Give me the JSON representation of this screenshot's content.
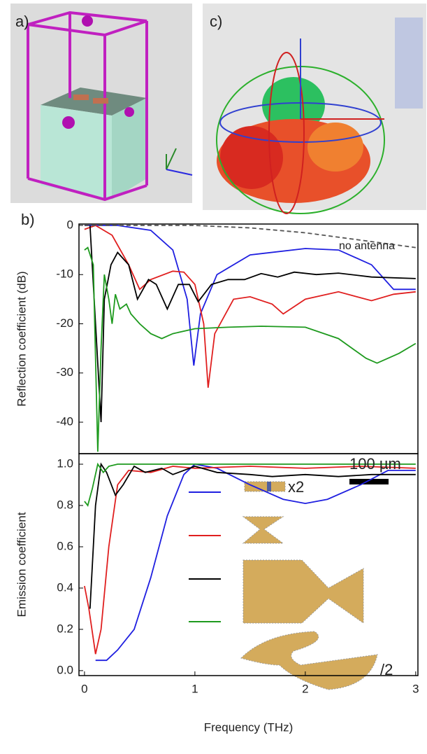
{
  "labels": {
    "a": "a)",
    "b": "b)",
    "c": "c)"
  },
  "chart_data": [
    {
      "type": "line",
      "y_label": "Reflection coefficient (dB)",
      "xlim": [
        -0.05,
        3.02
      ],
      "ylim": [
        -46.4,
        0.28
      ],
      "yticks": [
        0,
        -10,
        -20,
        -30,
        -40
      ],
      "annotations": [
        "no antenna"
      ],
      "series": [
        {
          "color": "#1f1fe0",
          "x": [
            0,
            0.3,
            0.6,
            0.8,
            0.93,
            0.99,
            1.05,
            1.2,
            1.5,
            2.0,
            2.3,
            2.6,
            2.8,
            3.0
          ],
          "values": [
            0,
            0,
            -1,
            -5,
            -15,
            -28.5,
            -18,
            -10,
            -6,
            -4.7,
            -5,
            -8,
            -13,
            -13
          ]
        },
        {
          "color": "#e01f1f",
          "x": [
            0,
            0.1,
            0.25,
            0.4,
            0.5,
            0.6,
            0.8,
            0.9,
            1.0,
            1.08,
            1.12,
            1.18,
            1.35,
            1.5,
            1.7,
            1.8,
            2.0,
            2.3,
            2.6,
            2.8,
            3.0
          ],
          "values": [
            -0.8,
            0,
            -2,
            -8,
            -13,
            -11,
            -9.3,
            -9.5,
            -12,
            -20,
            -33,
            -22,
            -15,
            -14.5,
            -16,
            -18,
            -15,
            -13.5,
            -15.3,
            -14,
            -13.5
          ]
        },
        {
          "color": "#000000",
          "x": [
            0.05,
            0.1,
            0.15,
            0.18,
            0.24,
            0.3,
            0.4,
            0.48,
            0.58,
            0.65,
            0.75,
            0.85,
            0.95,
            1.03,
            1.15,
            1.3,
            1.45,
            1.6,
            1.75,
            1.9,
            2.1,
            2.3,
            2.6,
            3.0
          ],
          "values": [
            0,
            -20,
            -40,
            -15,
            -8,
            -5.5,
            -8,
            -15,
            -11,
            -12,
            -17,
            -12,
            -12,
            -15.5,
            -12,
            -11,
            -11,
            -9.8,
            -10.5,
            -9.5,
            -10,
            -9.7,
            -10.5,
            -10.8
          ]
        },
        {
          "color": "#1e9a1e",
          "x": [
            0,
            0.03,
            0.08,
            0.12,
            0.15,
            0.18,
            0.22,
            0.25,
            0.28,
            0.32,
            0.38,
            0.42,
            0.5,
            0.6,
            0.7,
            0.8,
            1.0,
            1.3,
            1.6,
            2.0,
            2.3,
            2.55,
            2.65,
            2.85,
            3.0
          ],
          "values": [
            -5,
            -4.5,
            -8,
            -46,
            -25,
            -10,
            -15,
            -20,
            -14,
            -17,
            -16,
            -18,
            -20,
            -22,
            -23,
            -22,
            -21,
            -20.7,
            -20.5,
            -20.7,
            -23,
            -27,
            -28,
            -26,
            -24
          ]
        },
        {
          "color": "#555555",
          "dash": true,
          "x": [
            0,
            1.0,
            1.5,
            2.0,
            2.5,
            3.0
          ],
          "values": [
            0,
            0,
            -0.5,
            -1.5,
            -3,
            -4.5
          ]
        }
      ]
    },
    {
      "type": "line",
      "y_label": "Emission coefficient",
      "x_label": "Frequency (THz)",
      "xlim": [
        -0.05,
        3.02
      ],
      "ylim": [
        -0.024,
        1.051
      ],
      "xticks": [
        0,
        1,
        2,
        3
      ],
      "yticks": [
        {
          "value": 0,
          "label": "0.0"
        },
        0.2,
        0.4,
        0.6,
        0.8,
        {
          "value": 1,
          "label": "1.0"
        }
      ],
      "annotations": [
        "x2",
        "100 µm",
        "/2"
      ],
      "series": [
        {
          "color": "#1f1fe0",
          "x": [
            0.1,
            0.2,
            0.3,
            0.45,
            0.6,
            0.75,
            0.9,
            1.0,
            1.2,
            1.5,
            1.8,
            2.0,
            2.2,
            2.5,
            2.75,
            3.0
          ],
          "values": [
            0.05,
            0.05,
            0.1,
            0.2,
            0.45,
            0.75,
            0.95,
            1.0,
            0.98,
            0.9,
            0.83,
            0.81,
            0.83,
            0.9,
            0.97,
            0.97
          ]
        },
        {
          "color": "#e01f1f",
          "x": [
            0,
            0.04,
            0.1,
            0.15,
            0.22,
            0.3,
            0.4,
            0.6,
            0.8,
            1.0,
            1.5,
            2.0,
            2.5,
            3.0
          ],
          "values": [
            0.41,
            0.3,
            0.08,
            0.2,
            0.6,
            0.9,
            0.97,
            0.96,
            0.99,
            0.98,
            0.99,
            0.98,
            0.99,
            0.98
          ]
        },
        {
          "color": "#000000",
          "x": [
            0.05,
            0.1,
            0.15,
            0.2,
            0.28,
            0.35,
            0.45,
            0.55,
            0.7,
            0.8,
            1.0,
            1.2,
            1.5,
            1.7,
            2.0,
            2.3,
            2.6,
            3.0
          ],
          "values": [
            0.3,
            0.8,
            1.0,
            0.96,
            0.85,
            0.9,
            0.99,
            0.96,
            0.98,
            0.95,
            0.99,
            0.96,
            0.95,
            0.94,
            0.95,
            0.94,
            0.95,
            0.95
          ]
        },
        {
          "color": "#1e9a1e",
          "x": [
            0,
            0.03,
            0.07,
            0.12,
            0.17,
            0.22,
            0.3,
            3.0
          ],
          "values": [
            0.82,
            0.8,
            0.88,
            1.0,
            0.96,
            0.99,
            1.0,
            1.0
          ]
        }
      ]
    }
  ]
}
